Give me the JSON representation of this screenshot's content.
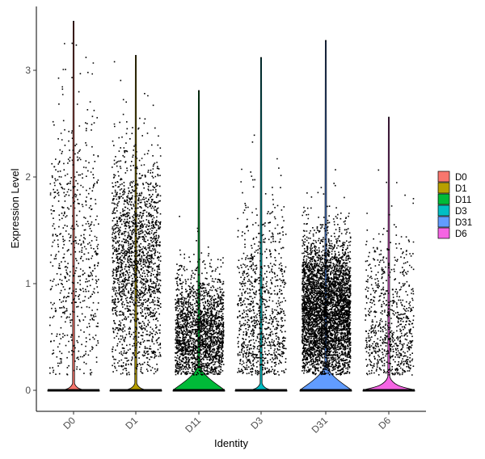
{
  "chart_data": {
    "type": "violin",
    "xlabel": "Identity",
    "ylabel": "Expression Level",
    "categories": [
      "D0",
      "D1",
      "D11",
      "D3",
      "D31",
      "D6"
    ],
    "yticks": [
      0,
      1,
      2,
      3
    ],
    "ylim": [
      -0.2,
      3.55
    ],
    "grid": false,
    "legend_position": "right",
    "legend": [
      "D0",
      "D1",
      "D11",
      "D3",
      "D31",
      "D6"
    ],
    "colors": [
      "#F8766D",
      "#B79F00",
      "#00BA38",
      "#00BFC4",
      "#619CFF",
      "#F564E3"
    ],
    "series": [
      {
        "name": "D0",
        "max": 3.46,
        "nonzero_points": 650,
        "nonzero_median": 1.3,
        "nonzero_spread": 0.7
      },
      {
        "name": "D1",
        "max": 3.14,
        "nonzero_points": 1900,
        "nonzero_median": 1.2,
        "nonzero_spread": 0.55
      },
      {
        "name": "D11",
        "max": 2.81,
        "nonzero_points": 2000,
        "nonzero_median": 0.55,
        "nonzero_spread": 0.3
      },
      {
        "name": "D3",
        "max": 3.12,
        "nonzero_points": 950,
        "nonzero_median": 0.7,
        "nonzero_spread": 0.5
      },
      {
        "name": "D31",
        "max": 3.28,
        "nonzero_points": 4200,
        "nonzero_median": 0.75,
        "nonzero_spread": 0.35
      },
      {
        "name": "D6",
        "max": 2.56,
        "nonzero_points": 750,
        "nonzero_median": 0.6,
        "nonzero_spread": 0.45
      }
    ]
  }
}
